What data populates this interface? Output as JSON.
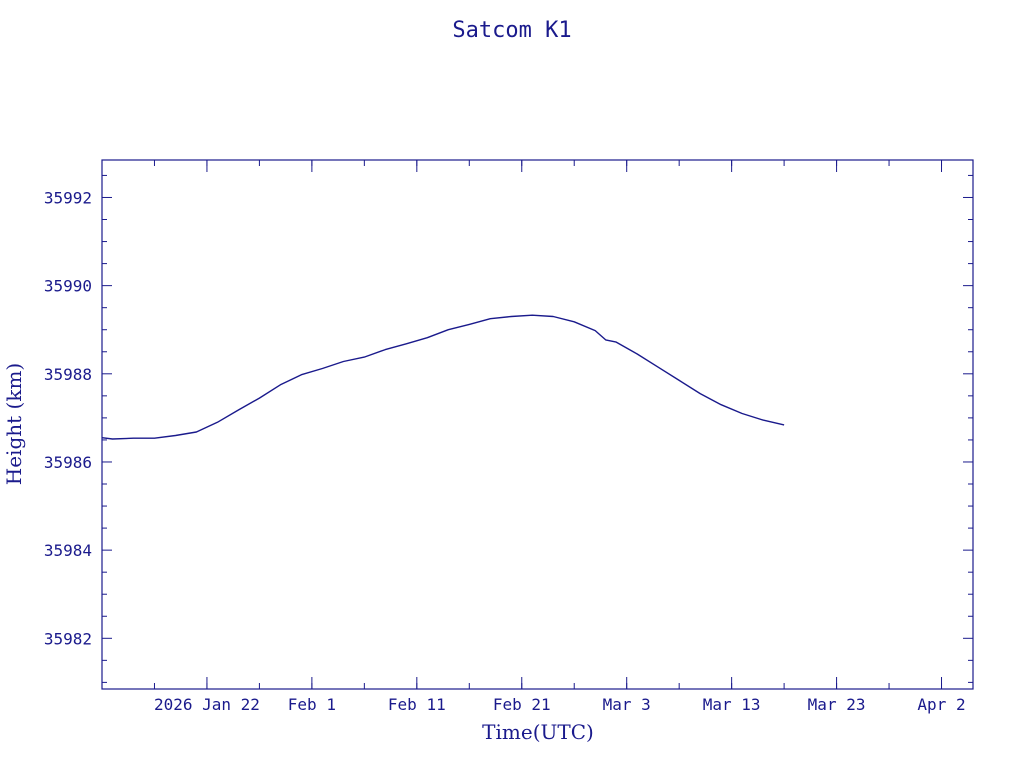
{
  "chart_data": {
    "type": "line",
    "title": "Satcom K1",
    "xlabel": "Time(UTC)",
    "ylabel": "Height (km)",
    "x_axis": {
      "kind": "date",
      "range": [
        "2026-01-12",
        "2026-04-05"
      ],
      "ticks": [
        {
          "date": "2026-01-22",
          "label": "2026 Jan 22"
        },
        {
          "date": "2026-02-01",
          "label": "Feb  1"
        },
        {
          "date": "2026-02-11",
          "label": "Feb 11"
        },
        {
          "date": "2026-02-21",
          "label": "Feb 21"
        },
        {
          "date": "2026-03-03",
          "label": "Mar  3"
        },
        {
          "date": "2026-03-13",
          "label": "Mar 13"
        },
        {
          "date": "2026-03-23",
          "label": "Mar 23"
        },
        {
          "date": "2026-04-02",
          "label": "Apr  2"
        }
      ]
    },
    "y_axis": {
      "range": [
        35980.85,
        35992.85
      ],
      "ticks": [
        35982,
        35984,
        35986,
        35988,
        35990,
        35992
      ],
      "tick_labels": [
        "35982",
        "35984",
        "35986",
        "35988",
        "35990",
        "35992"
      ]
    },
    "grid": false,
    "series": [
      {
        "color": "#1a1a8c",
        "x": [
          "2026-01-12",
          "2026-01-13",
          "2026-01-15",
          "2026-01-17",
          "2026-01-19",
          "2026-01-21",
          "2026-01-23",
          "2026-01-25",
          "2026-01-27",
          "2026-01-29",
          "2026-01-31",
          "2026-02-02",
          "2026-02-04",
          "2026-02-06",
          "2026-02-08",
          "2026-02-10",
          "2026-02-12",
          "2026-02-14",
          "2026-02-16",
          "2026-02-18",
          "2026-02-20",
          "2026-02-22",
          "2026-02-24",
          "2026-02-26",
          "2026-02-28",
          "2026-03-01",
          "2026-03-02",
          "2026-03-04",
          "2026-03-06",
          "2026-03-08",
          "2026-03-10",
          "2026-03-12",
          "2026-03-14",
          "2026-03-16",
          "2026-03-18"
        ],
        "y": [
          35986.55,
          35986.52,
          35986.54,
          35986.54,
          35986.6,
          35986.68,
          35986.9,
          35987.18,
          35987.45,
          35987.75,
          35987.98,
          35988.12,
          35988.28,
          35988.38,
          35988.55,
          35988.68,
          35988.82,
          35989.0,
          35989.12,
          35989.25,
          35989.3,
          35989.33,
          35989.3,
          35989.18,
          35988.98,
          35988.77,
          35988.72,
          35988.45,
          35988.15,
          35987.85,
          35987.55,
          35987.3,
          35987.1,
          35986.95,
          35986.84
        ]
      }
    ]
  }
}
